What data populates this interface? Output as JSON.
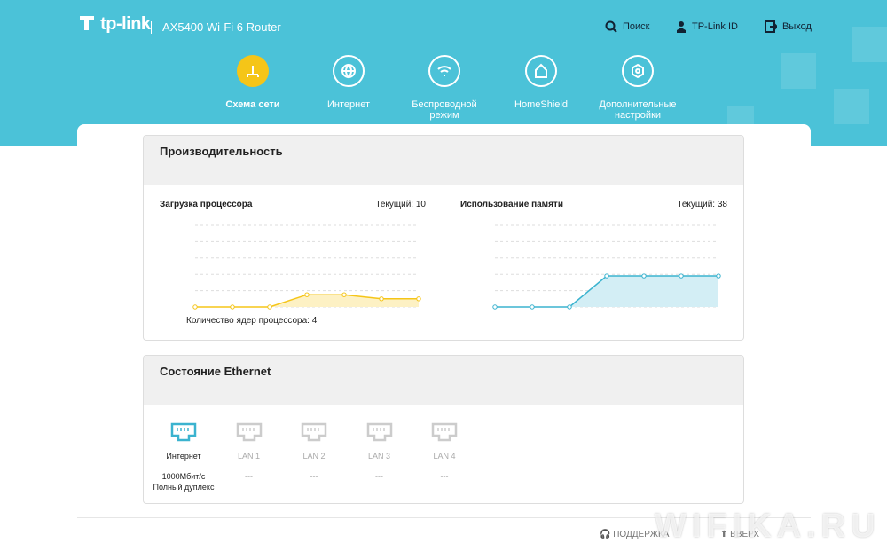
{
  "header": {
    "brand": "tp-link",
    "model": "AX5400 Wi-Fi 6 Router",
    "links": [
      "Поиск",
      "TP-Link ID",
      "Выход"
    ]
  },
  "nav": [
    {
      "label": "Схема сети",
      "active": true
    },
    {
      "label": "Интернет",
      "active": false
    },
    {
      "label": "Беспроводной режим",
      "active": false
    },
    {
      "label": "HomeShield",
      "active": false
    },
    {
      "label": "Дополнительные настройки",
      "active": false
    }
  ],
  "performance": {
    "title": "Производительность",
    "cpu": {
      "type": "line",
      "title": "Загрузка процессора",
      "current_label": "Текущий:",
      "current": 10,
      "values": [
        0,
        0,
        0,
        15,
        15,
        10,
        10
      ],
      "ylim": [
        0,
        100
      ],
      "color": "#f5c518",
      "fill": "#fdf1c4"
    },
    "cores": "Количество ядер процессора: 4",
    "memory": {
      "type": "line",
      "title": "Использование памяти",
      "current_label": "Текущий:",
      "current": 38,
      "values": [
        0,
        0,
        0,
        38,
        38,
        38,
        38
      ],
      "ylim": [
        0,
        100
      ],
      "color": "#3bb3cf",
      "fill": "#d3eef5"
    }
  },
  "ethernet": {
    "title": "Состояние Ethernet",
    "ports": [
      {
        "name": "Интернет",
        "status": "1000Мбит/с Полный дуплекс",
        "connected": true
      },
      {
        "name": "LAN 1",
        "status": "---",
        "connected": false
      },
      {
        "name": "LAN 2",
        "status": "---",
        "connected": false
      },
      {
        "name": "LAN 3",
        "status": "---",
        "connected": false
      },
      {
        "name": "LAN 4",
        "status": "---",
        "connected": false
      }
    ]
  },
  "footer": {
    "support": "ПОДДЕРЖКА",
    "top": "ВВЕРХ"
  },
  "watermark": "WIFIKA.RU"
}
